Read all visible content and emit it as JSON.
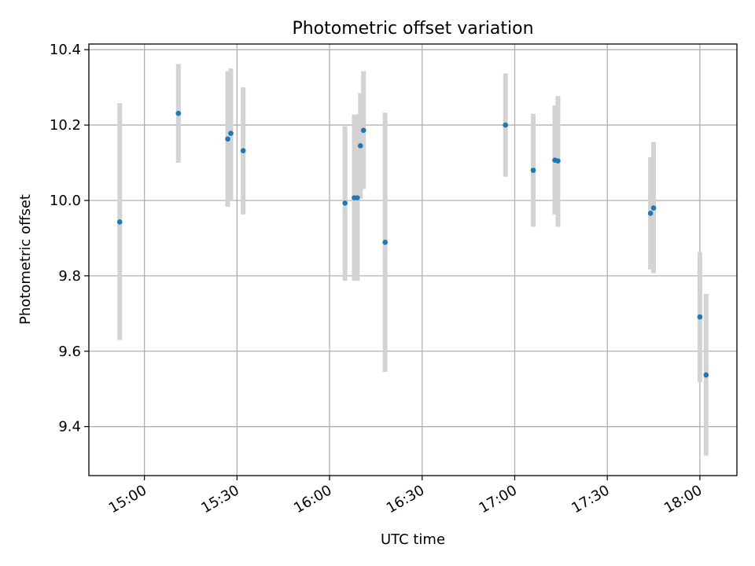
{
  "chart_data": {
    "type": "scatter",
    "title": "Photometric offset variation",
    "xlabel": "UTC time",
    "ylabel": "Photometric offset",
    "x_type": "time",
    "x_ticks": [
      "15:00",
      "15:30",
      "16:00",
      "16:30",
      "17:00",
      "17:30",
      "18:00"
    ],
    "y_ticks": [
      "9.4",
      "9.6",
      "9.8",
      "10.0",
      "10.2",
      "10.4"
    ],
    "xlim": [
      "14:42",
      "18:12"
    ],
    "ylim": [
      9.27,
      10.415
    ],
    "grid": true,
    "tick_label_rotation": "30 degrees",
    "colors": {
      "point": "#1f77b4",
      "errorbar": "#d3d3d3",
      "grid": "#b0b0b0"
    },
    "series": [
      {
        "points": [
          {
            "x": "14:52",
            "y": 9.943,
            "err_low": 9.63,
            "err_high": 10.258
          },
          {
            "x": "15:11",
            "y": 10.231,
            "err_low": 10.1,
            "err_high": 10.362
          },
          {
            "x": "15:27",
            "y": 10.163,
            "err_low": 9.983,
            "err_high": 10.343
          },
          {
            "x": "15:28",
            "y": 10.178,
            "err_low": 10.0,
            "err_high": 10.35
          },
          {
            "x": "15:32",
            "y": 10.132,
            "err_low": 9.963,
            "err_high": 10.3
          },
          {
            "x": "16:05",
            "y": 9.993,
            "err_low": 9.787,
            "err_high": 10.197
          },
          {
            "x": "16:08",
            "y": 10.007,
            "err_low": 9.787,
            "err_high": 10.228
          },
          {
            "x": "16:09",
            "y": 10.007,
            "err_low": 9.787,
            "err_high": 10.228
          },
          {
            "x": "16:10",
            "y": 10.145,
            "err_low": 10.005,
            "err_high": 10.285
          },
          {
            "x": "16:11",
            "y": 10.186,
            "err_low": 10.03,
            "err_high": 10.343
          },
          {
            "x": "16:18",
            "y": 9.889,
            "err_low": 9.545,
            "err_high": 10.233
          },
          {
            "x": "16:57",
            "y": 10.2,
            "err_low": 10.063,
            "err_high": 10.337
          },
          {
            "x": "17:06",
            "y": 10.08,
            "err_low": 9.93,
            "err_high": 10.23
          },
          {
            "x": "17:13",
            "y": 10.107,
            "err_low": 9.963,
            "err_high": 10.252
          },
          {
            "x": "17:14",
            "y": 10.105,
            "err_low": 9.93,
            "err_high": 10.277
          },
          {
            "x": "17:44",
            "y": 9.966,
            "err_low": 9.817,
            "err_high": 10.115
          },
          {
            "x": "17:45",
            "y": 9.98,
            "err_low": 9.807,
            "err_high": 10.155
          },
          {
            "x": "18:00",
            "y": 9.691,
            "err_low": 9.518,
            "err_high": 9.863
          },
          {
            "x": "18:02",
            "y": 9.537,
            "err_low": 9.323,
            "err_high": 9.752
          }
        ]
      }
    ]
  }
}
